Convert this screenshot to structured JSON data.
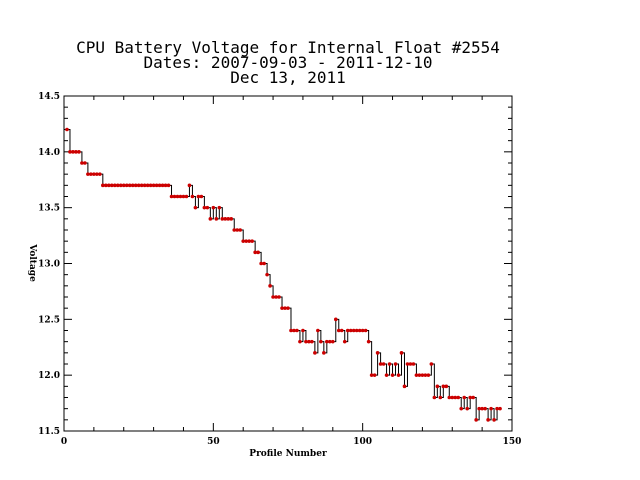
{
  "chart_data": {
    "type": "line",
    "title_lines": [
      "CPU Battery Voltage for Internal Float #2554",
      "Dates:  2007-09-03 -  2011-12-10",
      "Dec 13, 2011"
    ],
    "xlabel": "Profile Number",
    "ylabel": "Voltage",
    "xlim": [
      0,
      150
    ],
    "ylim": [
      11.5,
      14.5
    ],
    "x_ticks": [
      0,
      50,
      100,
      150
    ],
    "y_ticks": [
      "11.5",
      "12.0",
      "12.5",
      "13.0",
      "13.5",
      "14.0",
      "14.5"
    ],
    "grid": false,
    "line_color": "#000000",
    "marker_color": "#cc0000",
    "series": [
      {
        "x": [
          1,
          2,
          3,
          4,
          5,
          6,
          7,
          8,
          9,
          10,
          11,
          12,
          13,
          14,
          15,
          16,
          17,
          18,
          19,
          20,
          21,
          22,
          23,
          24,
          25,
          26,
          27,
          28,
          29,
          30,
          31,
          32,
          33,
          34,
          35,
          36,
          37,
          38,
          39,
          40,
          41,
          42,
          43,
          44,
          45,
          46,
          47,
          48,
          49,
          50,
          51,
          52,
          53,
          54,
          55,
          56,
          57,
          58,
          59,
          60,
          61,
          62,
          63,
          64,
          65,
          66,
          67,
          68,
          69,
          70,
          71,
          72,
          73,
          74,
          75,
          76,
          77,
          78,
          79,
          80,
          81,
          82,
          83,
          84,
          85,
          86,
          87,
          88,
          89,
          90,
          91,
          92,
          93,
          94,
          95,
          96,
          97,
          98,
          99,
          100,
          101,
          102,
          103,
          104,
          105,
          106,
          107,
          108,
          109,
          110,
          111,
          112,
          113,
          114,
          115,
          116,
          117,
          118,
          119,
          120,
          121,
          122,
          123,
          124,
          125,
          126,
          127,
          128,
          129,
          130,
          131,
          132,
          133,
          134,
          135,
          136,
          137,
          138,
          139,
          140,
          141,
          142,
          143,
          144,
          145,
          146
        ],
        "y": [
          14.2,
          14.0,
          14.0,
          14.0,
          14.0,
          13.9,
          13.9,
          13.8,
          13.8,
          13.8,
          13.8,
          13.8,
          13.7,
          13.7,
          13.7,
          13.7,
          13.7,
          13.7,
          13.7,
          13.7,
          13.7,
          13.7,
          13.7,
          13.7,
          13.7,
          13.7,
          13.7,
          13.7,
          13.7,
          13.7,
          13.7,
          13.7,
          13.7,
          13.7,
          13.7,
          13.6,
          13.6,
          13.6,
          13.6,
          13.6,
          13.6,
          13.7,
          13.6,
          13.5,
          13.6,
          13.6,
          13.5,
          13.5,
          13.4,
          13.5,
          13.4,
          13.5,
          13.4,
          13.4,
          13.4,
          13.4,
          13.3,
          13.3,
          13.3,
          13.2,
          13.2,
          13.2,
          13.2,
          13.1,
          13.1,
          13.0,
          13.0,
          12.9,
          12.8,
          12.7,
          12.7,
          12.7,
          12.6,
          12.6,
          12.6,
          12.4,
          12.4,
          12.4,
          12.3,
          12.4,
          12.3,
          12.3,
          12.3,
          12.2,
          12.4,
          12.3,
          12.2,
          12.3,
          12.3,
          12.3,
          12.5,
          12.4,
          12.4,
          12.3,
          12.4,
          12.4,
          12.4,
          12.4,
          12.4,
          12.4,
          12.4,
          12.3,
          12.0,
          12.0,
          12.2,
          12.1,
          12.1,
          12.0,
          12.1,
          12.0,
          12.1,
          12.0,
          12.2,
          11.9,
          12.1,
          12.1,
          12.1,
          12.0,
          12.0,
          12.0,
          12.0,
          12.0,
          12.1,
          11.8,
          11.9,
          11.8,
          11.9,
          11.9,
          11.8,
          11.8,
          11.8,
          11.8,
          11.7,
          11.8,
          11.7,
          11.8,
          11.8,
          11.6,
          11.7,
          11.7,
          11.7,
          11.6,
          11.7,
          11.6,
          11.7,
          11.7
        ]
      }
    ]
  }
}
